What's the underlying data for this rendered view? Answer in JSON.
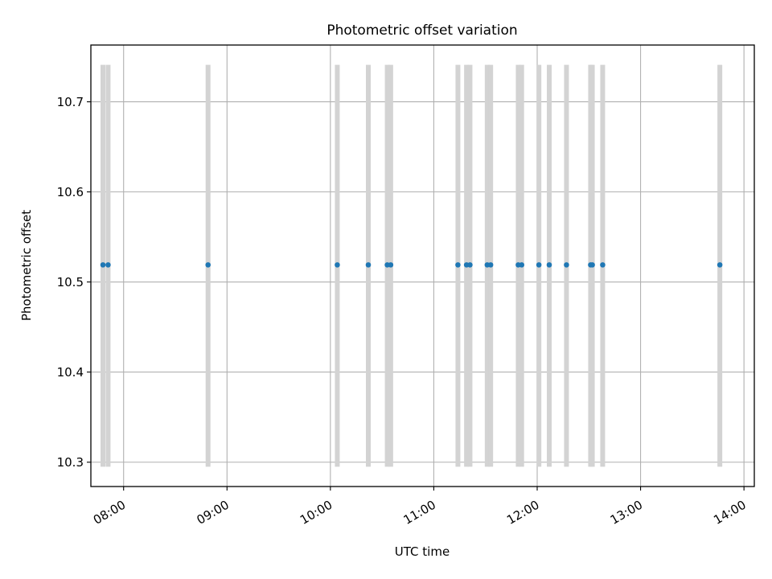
{
  "chart_data": {
    "type": "scatter",
    "title": "Photometric offset variation",
    "xlabel": "UTC time",
    "ylabel": "Photometric offset",
    "grid": true,
    "legend": "none",
    "x_axis_kind": "time",
    "xlim": [
      "07:41",
      "14:06"
    ],
    "ylim": [
      10.273,
      10.763
    ],
    "x_ticks": [
      "08:00",
      "09:00",
      "10:00",
      "11:00",
      "12:00",
      "13:00",
      "14:00"
    ],
    "y_ticks": [
      10.3,
      10.4,
      10.5,
      10.6,
      10.7
    ],
    "y_tick_labels": [
      "10.3",
      "10.4",
      "10.5",
      "10.6",
      "10.7"
    ],
    "band_range": [
      10.295,
      10.741
    ],
    "colors": {
      "points": "#1f77b4",
      "bands": "#d3d3d3",
      "grid": "#b0b0b0",
      "axes": "#000000"
    },
    "series": [
      {
        "x": [
          "07:48",
          "07:51",
          "08:49",
          "10:04",
          "10:22",
          "10:33",
          "10:35",
          "11:14",
          "11:19",
          "11:21",
          "11:31",
          "11:33",
          "11:49",
          "11:51",
          "12:01",
          "12:07",
          "12:17",
          "12:31",
          "12:32",
          "12:38",
          "13:46"
        ],
        "y": [
          10.519,
          10.519,
          10.519,
          10.519,
          10.519,
          10.519,
          10.519,
          10.519,
          10.519,
          10.519,
          10.519,
          10.519,
          10.519,
          10.519,
          10.519,
          10.519,
          10.519,
          10.519,
          10.519,
          10.519,
          10.519
        ]
      }
    ]
  }
}
